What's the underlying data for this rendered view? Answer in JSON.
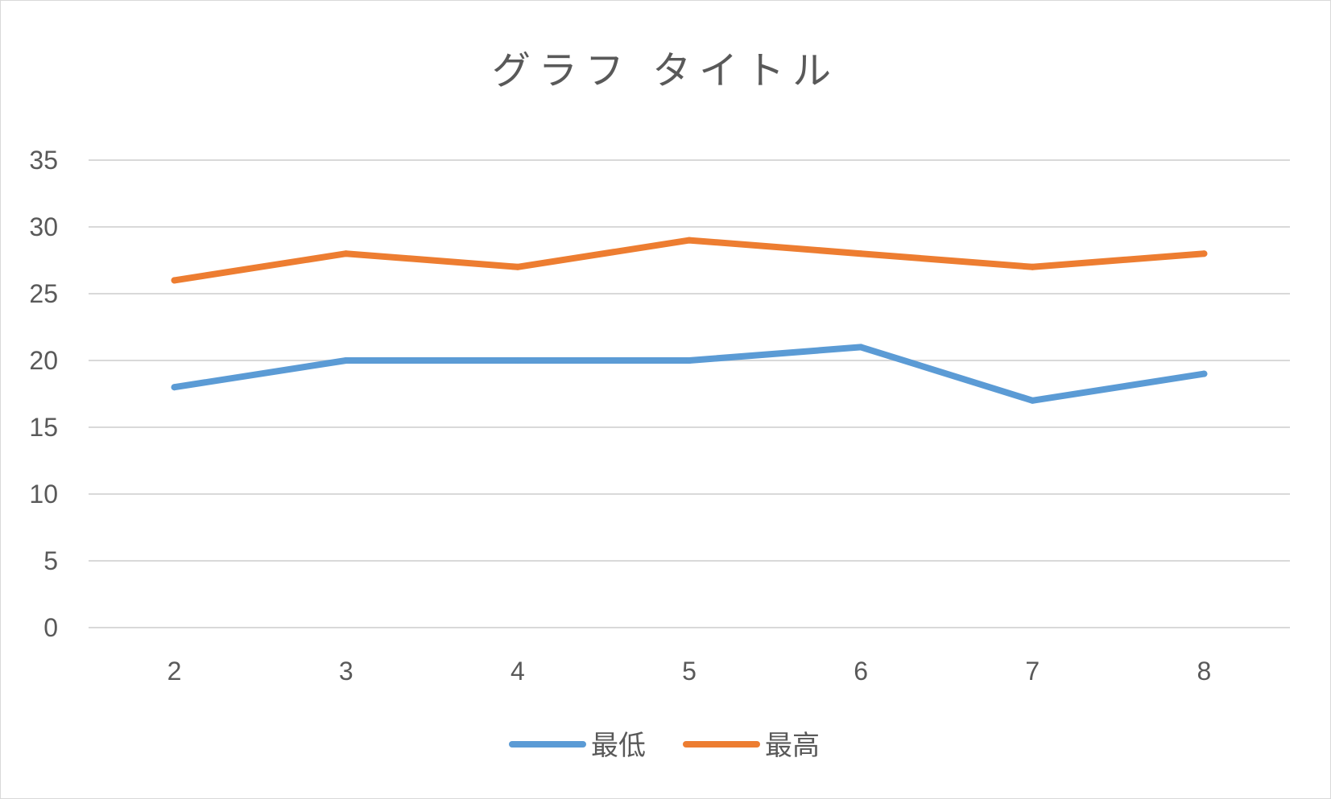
{
  "chart_data": {
    "type": "line",
    "title": "グラフ タイトル",
    "xlabel": "",
    "ylabel": "",
    "categories": [
      "2",
      "3",
      "4",
      "5",
      "6",
      "7",
      "8"
    ],
    "ylim": [
      0,
      35
    ],
    "yticks": [
      0,
      5,
      10,
      15,
      20,
      25,
      30,
      35
    ],
    "grid": true,
    "legend_position": "bottom",
    "series": [
      {
        "name": "最低",
        "color": "#5b9bd5",
        "values": [
          18,
          20,
          20,
          20,
          21,
          17,
          19
        ]
      },
      {
        "name": "最高",
        "color": "#ed7d31",
        "values": [
          26,
          28,
          27,
          29,
          28,
          27,
          28
        ]
      }
    ]
  }
}
